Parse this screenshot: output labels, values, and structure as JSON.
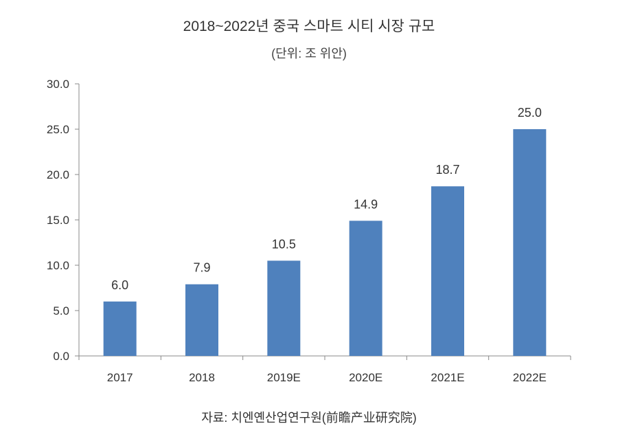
{
  "chart_data": {
    "type": "bar",
    "title": "2018~2022년 중국 스마트 시티 시장 규모",
    "subtitle": "(단위: 조 위안)",
    "categories": [
      "2017",
      "2018",
      "2019E",
      "2020E",
      "2021E",
      "2022E"
    ],
    "values": [
      6.0,
      7.9,
      10.5,
      14.9,
      18.7,
      25.0
    ],
    "value_labels": [
      "6.0",
      "7.9",
      "10.5",
      "14.9",
      "18.7",
      "25.0"
    ],
    "ylim": [
      0,
      30
    ],
    "yticks": [
      "0.0",
      "5.0",
      "10.0",
      "15.0",
      "20.0",
      "25.0",
      "30.0"
    ],
    "xlabel": "",
    "ylabel": "",
    "grid": false,
    "bar_color": "#4f81bd",
    "source": "자료: 치엔옌산업연구원(前瞻产业研究院)"
  }
}
